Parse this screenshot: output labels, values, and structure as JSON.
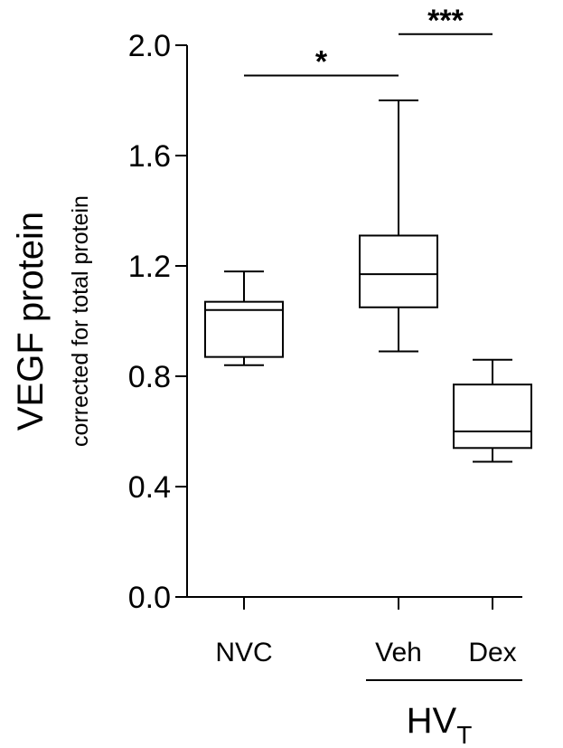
{
  "chart_data": {
    "type": "box",
    "ylabel": "VEGF protein",
    "ylabel_sub": "corrected for total protein",
    "ylim": [
      0,
      2.0
    ],
    "yticks": [
      "0.0",
      "0.4",
      "0.8",
      "1.2",
      "1.6",
      "2.0"
    ],
    "categories": [
      "NVC",
      "Veh",
      "Dex"
    ],
    "group_label": {
      "base": "HV",
      "sub": "T"
    },
    "boxes": [
      {
        "category": "NVC",
        "min": 0.84,
        "q1": 0.87,
        "median": 1.04,
        "q3": 1.07,
        "max": 1.18
      },
      {
        "category": "Veh",
        "min": 0.89,
        "q1": 1.05,
        "median": 1.17,
        "q3": 1.31,
        "max": 1.8
      },
      {
        "category": "Dex",
        "min": 0.49,
        "q1": 0.54,
        "median": 0.6,
        "q3": 0.77,
        "max": 0.86
      }
    ],
    "significance": [
      {
        "from": "NVC",
        "to": "Veh",
        "label": "*",
        "y": 1.89
      },
      {
        "from": "Veh",
        "to": "Dex",
        "label": "***",
        "y": 2.04
      }
    ]
  }
}
